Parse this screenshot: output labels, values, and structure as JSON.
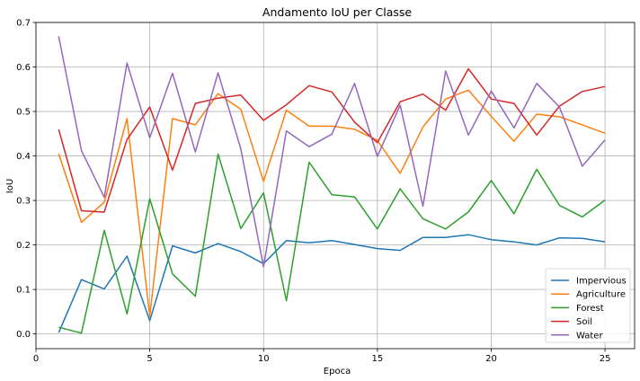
{
  "chart_data": {
    "type": "line",
    "title": "Andamento IoU per Classe",
    "xlabel": "Epoca",
    "ylabel": "IoU",
    "xlim": [
      0,
      26.3
    ],
    "ylim": [
      -0.033,
      0.7
    ],
    "xticks": [
      0,
      5,
      10,
      15,
      20,
      25
    ],
    "yticks": [
      0.0,
      0.1,
      0.2,
      0.3,
      0.4,
      0.5,
      0.6,
      0.7
    ],
    "grid": true,
    "legend_position": "bottom-right",
    "x": [
      1,
      2,
      3,
      4,
      5,
      6,
      7,
      8,
      9,
      10,
      11,
      12,
      13,
      14,
      15,
      16,
      17,
      18,
      19,
      20,
      21,
      22,
      23,
      24,
      25
    ],
    "series": [
      {
        "name": "Impervious",
        "color": "#1f77b4",
        "values": [
          0.003,
          0.122,
          0.101,
          0.175,
          0.03,
          0.198,
          0.182,
          0.203,
          0.185,
          0.158,
          0.21,
          0.205,
          0.21,
          0.201,
          0.192,
          0.188,
          0.217,
          0.217,
          0.223,
          0.212,
          0.207,
          0.2,
          0.216,
          0.215,
          0.207
        ]
      },
      {
        "name": "Agriculture",
        "color": "#ff7f0e",
        "values": [
          0.405,
          0.251,
          0.296,
          0.484,
          0.04,
          0.484,
          0.47,
          0.54,
          0.505,
          0.343,
          0.503,
          0.467,
          0.467,
          0.46,
          0.435,
          0.361,
          0.465,
          0.528,
          0.548,
          0.489,
          0.433,
          0.494,
          0.488,
          0.47,
          0.451
        ]
      },
      {
        "name": "Forest",
        "color": "#2ca02c",
        "values": [
          0.015,
          0.002,
          0.233,
          0.045,
          0.304,
          0.135,
          0.085,
          0.404,
          0.237,
          0.317,
          0.075,
          0.386,
          0.313,
          0.308,
          0.236,
          0.326,
          0.259,
          0.236,
          0.274,
          0.345,
          0.27,
          0.37,
          0.289,
          0.263,
          0.301
        ]
      },
      {
        "name": "Soil",
        "color": "#d62728",
        "values": [
          0.46,
          0.277,
          0.274,
          0.437,
          0.51,
          0.368,
          0.518,
          0.53,
          0.537,
          0.48,
          0.515,
          0.558,
          0.544,
          0.476,
          0.43,
          0.522,
          0.539,
          0.503,
          0.596,
          0.528,
          0.518,
          0.447,
          0.512,
          0.545,
          0.556
        ]
      },
      {
        "name": "Water",
        "color": "#9467bd",
        "values": [
          0.669,
          0.412,
          0.307,
          0.609,
          0.441,
          0.586,
          0.409,
          0.587,
          0.416,
          0.151,
          0.456,
          0.421,
          0.449,
          0.563,
          0.399,
          0.514,
          0.287,
          0.591,
          0.447,
          0.546,
          0.463,
          0.563,
          0.51,
          0.377,
          0.436
        ]
      }
    ]
  }
}
